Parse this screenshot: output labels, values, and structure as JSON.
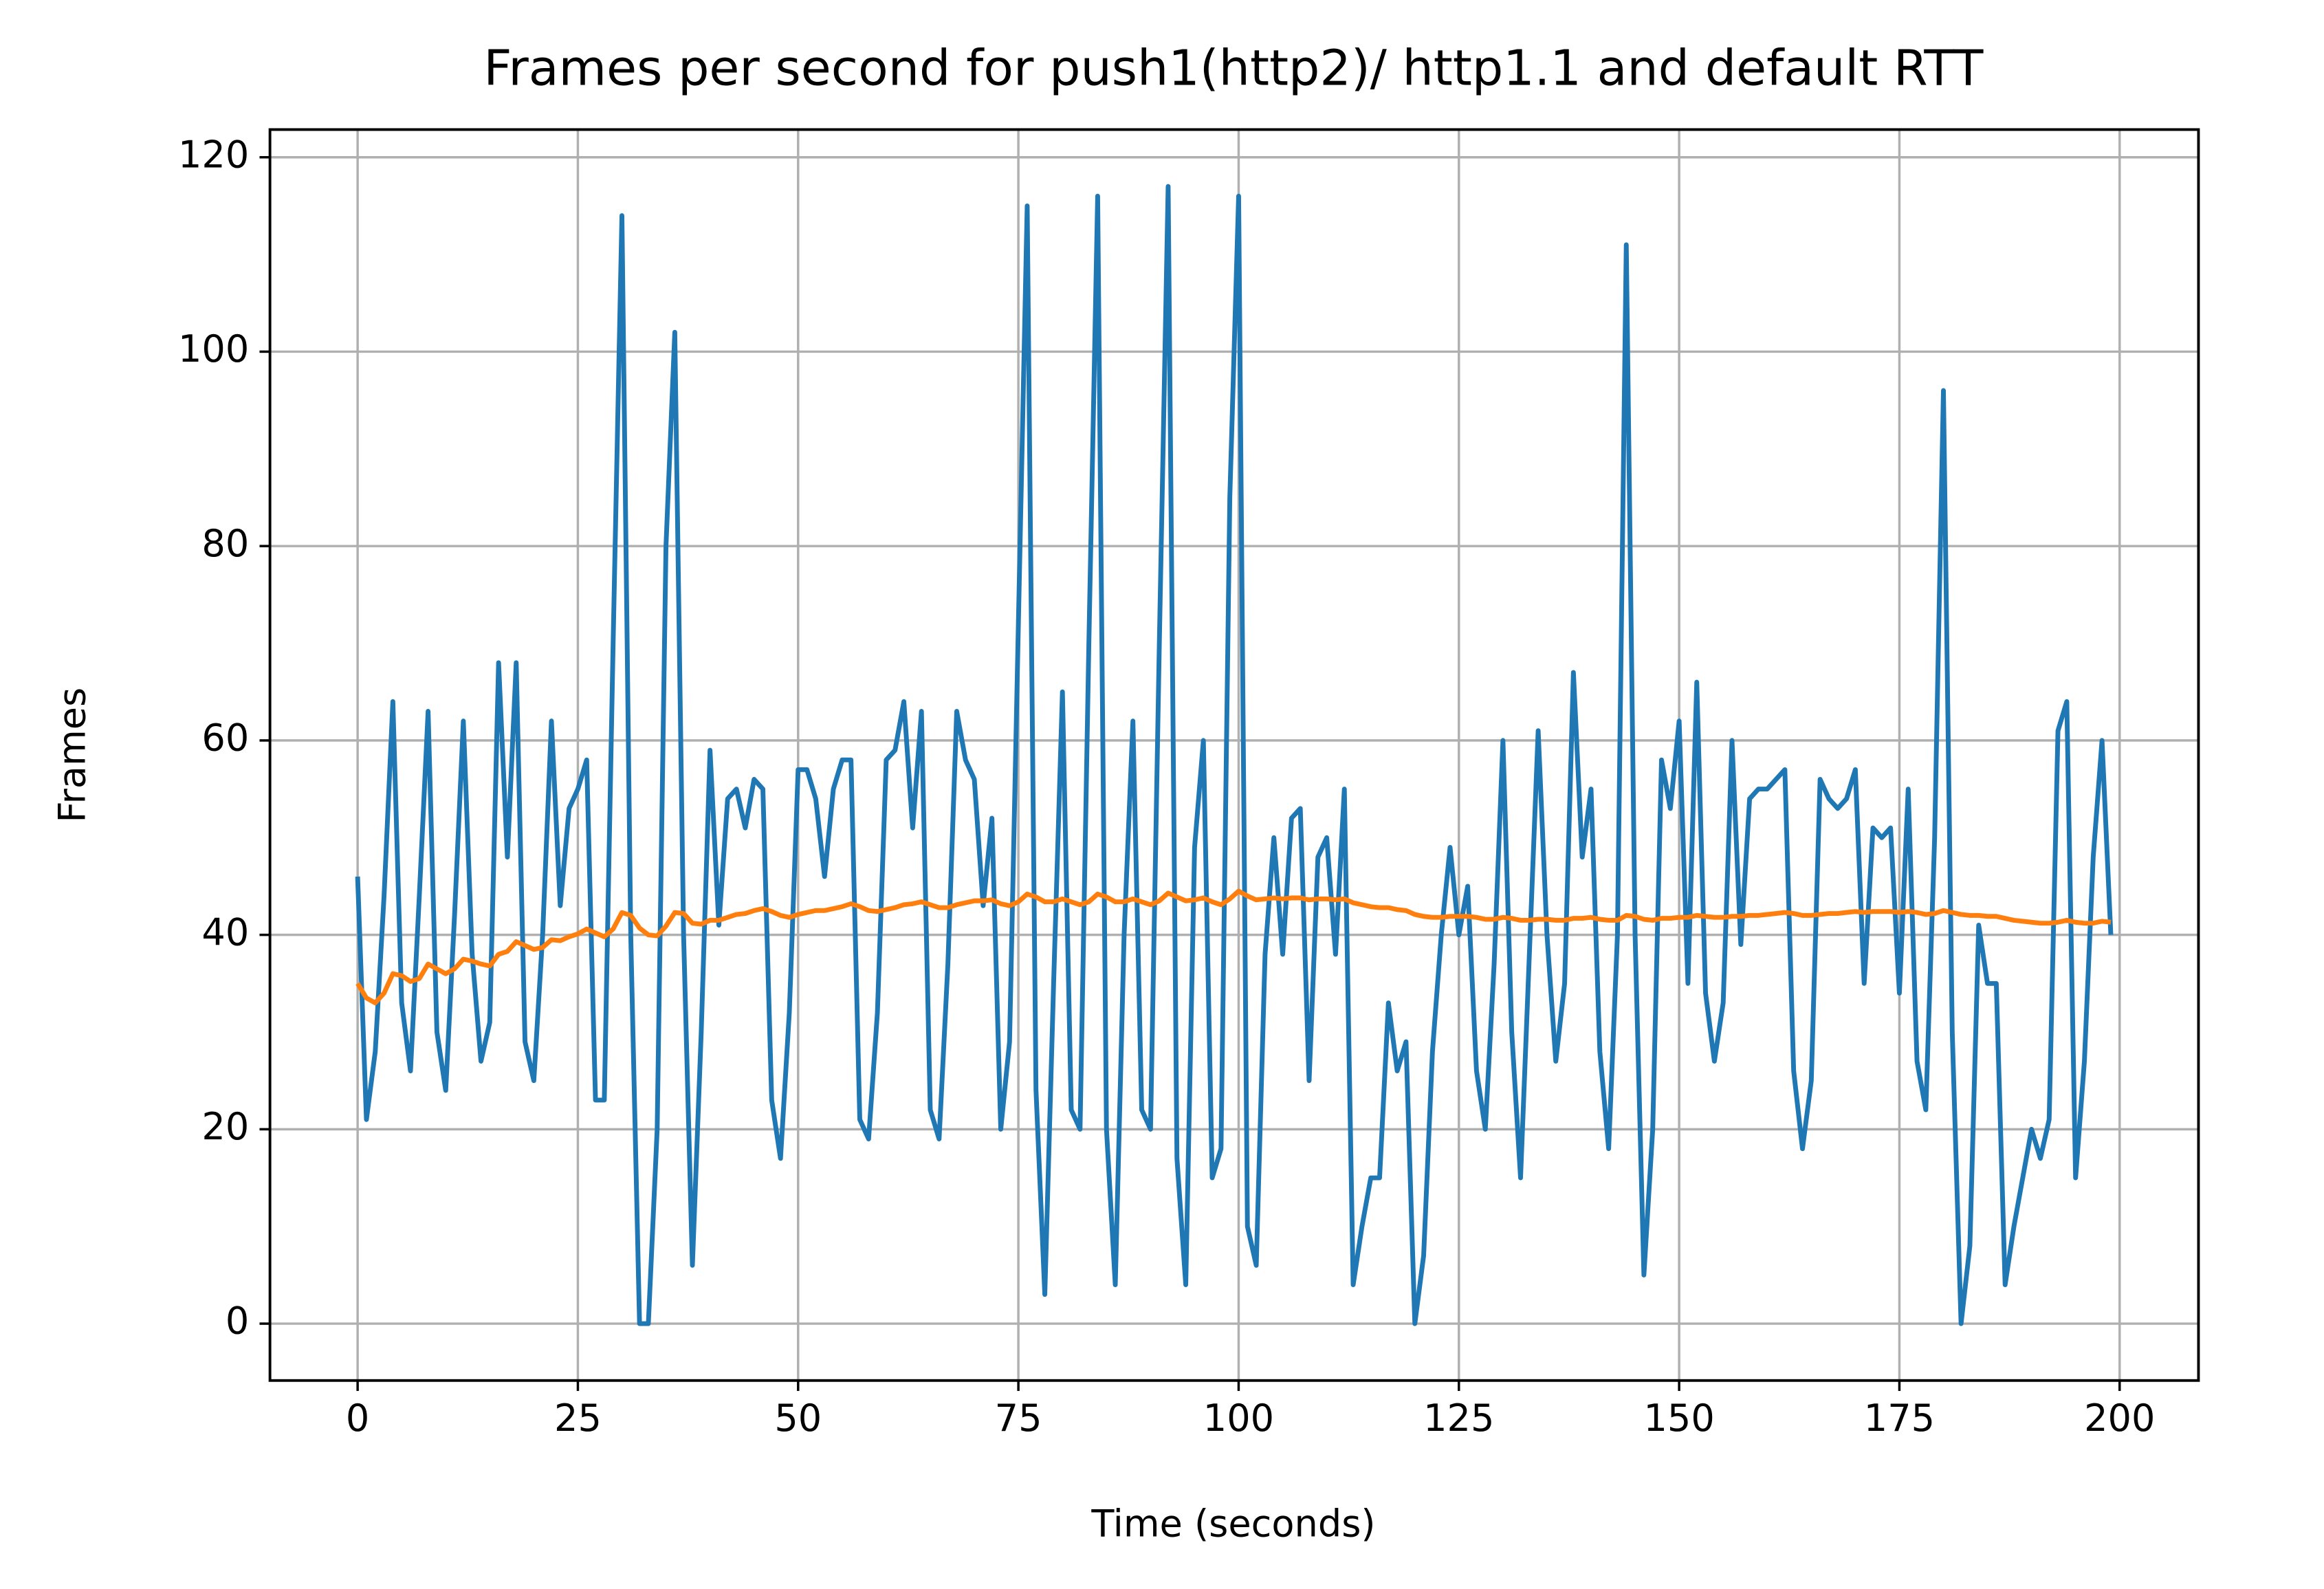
{
  "chart_data": {
    "type": "line",
    "title": "Frames per second for push1(http2)/ http1.1 and default RTT",
    "x_label": "Time (seconds)",
    "y_label": "Frames",
    "x": [
      0,
      1,
      2,
      3,
      4,
      5,
      6,
      7,
      8,
      9,
      10,
      11,
      12,
      13,
      14,
      15,
      16,
      17,
      18,
      19,
      20,
      21,
      22,
      23,
      24,
      25,
      26,
      27,
      28,
      29,
      30,
      31,
      32,
      33,
      34,
      35,
      36,
      37,
      38,
      39,
      40,
      41,
      42,
      43,
      44,
      45,
      46,
      47,
      48,
      49,
      50,
      51,
      52,
      53,
      54,
      55,
      56,
      57,
      58,
      59,
      60,
      61,
      62,
      63,
      64,
      65,
      66,
      67,
      68,
      69,
      70,
      71,
      72,
      73,
      74,
      75,
      76,
      77,
      78,
      79,
      80,
      81,
      82,
      83,
      84,
      85,
      86,
      87,
      88,
      89,
      90,
      91,
      92,
      93,
      94,
      95,
      96,
      97,
      98,
      99,
      100,
      101,
      102,
      103,
      104,
      105,
      106,
      107,
      108,
      109,
      110,
      111,
      112,
      113,
      114,
      115,
      116,
      117,
      118,
      119,
      120,
      121,
      122,
      123,
      124,
      125,
      126,
      127,
      128,
      129,
      130,
      131,
      132,
      133,
      134,
      135,
      136,
      137,
      138,
      139,
      140,
      141,
      142,
      143,
      144,
      145,
      146,
      147,
      148,
      149,
      150,
      151,
      152,
      153,
      154,
      155,
      156,
      157,
      158,
      159,
      160,
      161,
      162,
      163,
      164,
      165,
      166,
      167,
      168,
      169,
      170,
      171,
      172,
      173,
      174,
      175,
      176,
      177,
      178,
      179,
      180,
      181,
      182,
      183,
      184,
      185,
      186,
      187,
      188,
      189,
      190,
      191,
      192,
      193,
      194,
      195,
      196,
      197,
      198,
      199
    ],
    "series": [
      {
        "color": "#1f77b4",
        "values": [
          46,
          21,
          28,
          44,
          64,
          33,
          26,
          44,
          63,
          30,
          24,
          42,
          62,
          38,
          27,
          31,
          68,
          48,
          68,
          29,
          25,
          40,
          62,
          43,
          53,
          55,
          58,
          23,
          23,
          70,
          114,
          40,
          0,
          0,
          20,
          80,
          102,
          40,
          6,
          30,
          59,
          41,
          54,
          55,
          51,
          56,
          55,
          23,
          17,
          32,
          57,
          57,
          54,
          46,
          55,
          58,
          58,
          21,
          19,
          32,
          58,
          59,
          64,
          51,
          63,
          22,
          19,
          37,
          63,
          58,
          56,
          43,
          52,
          20,
          29,
          72,
          115,
          24,
          3,
          35,
          65,
          22,
          20,
          70,
          116,
          20,
          4,
          40,
          62,
          22,
          20,
          70,
          117,
          17,
          4,
          49,
          60,
          15,
          18,
          85,
          116,
          10,
          6,
          38,
          50,
          38,
          52,
          53,
          25,
          48,
          50,
          38,
          55,
          4,
          10,
          15,
          15,
          33,
          26,
          29,
          0,
          7,
          28,
          40,
          49,
          40,
          45,
          26,
          20,
          37,
          60,
          30,
          15,
          38,
          61,
          40,
          27,
          35,
          67,
          48,
          55,
          28,
          18,
          40,
          111,
          40,
          5,
          20,
          58,
          53,
          62,
          35,
          66,
          34,
          27,
          33,
          60,
          39,
          54,
          55,
          55,
          56,
          57,
          26,
          18,
          25,
          56,
          54,
          53,
          54,
          57,
          35,
          51,
          50,
          51,
          34,
          55,
          27,
          22,
          50,
          96,
          30,
          0,
          8,
          41,
          35,
          35,
          4,
          10,
          15,
          20,
          17,
          21,
          61,
          64,
          15,
          27,
          48,
          60,
          40
        ]
      },
      {
        "color": "#ff7f0e",
        "values": [
          35,
          33.5,
          33,
          34,
          36,
          35.8,
          35.2,
          35.5,
          37,
          36.5,
          36,
          36.5,
          37.5,
          37.3,
          37,
          36.8,
          38,
          38.3,
          39.3,
          38.9,
          38.5,
          38.7,
          39.5,
          39.4,
          39.8,
          40.1,
          40.6,
          40.2,
          39.8,
          40.6,
          42.3,
          42,
          40.7,
          40,
          39.9,
          40.9,
          42.3,
          42.2,
          41.2,
          41.1,
          41.5,
          41.5,
          41.8,
          42.1,
          42.2,
          42.5,
          42.7,
          42.4,
          42,
          41.8,
          42.1,
          42.3,
          42.5,
          42.5,
          42.7,
          42.9,
          43.2,
          42.9,
          42.5,
          42.4,
          42.6,
          42.8,
          43.1,
          43.2,
          43.4,
          43.1,
          42.8,
          42.8,
          43.1,
          43.3,
          43.5,
          43.5,
          43.6,
          43.2,
          43,
          43.4,
          44.2,
          43.9,
          43.4,
          43.4,
          43.7,
          43.4,
          43.1,
          43.4,
          44.2,
          43.9,
          43.4,
          43.4,
          43.7,
          43.4,
          43.1,
          43.5,
          44.3,
          43.9,
          43.5,
          43.6,
          43.8,
          43.4,
          43.1,
          43.7,
          44.5,
          44,
          43.6,
          43.7,
          43.8,
          43.7,
          43.8,
          43.8,
          43.6,
          43.7,
          43.7,
          43.6,
          43.7,
          43.3,
          43.1,
          42.9,
          42.8,
          42.8,
          42.6,
          42.5,
          42.1,
          41.9,
          41.8,
          41.8,
          41.9,
          41.9,
          41.9,
          41.8,
          41.6,
          41.6,
          41.8,
          41.7,
          41.5,
          41.5,
          41.6,
          41.6,
          41.5,
          41.5,
          41.7,
          41.7,
          41.8,
          41.6,
          41.5,
          41.5,
          42,
          41.9,
          41.6,
          41.5,
          41.7,
          41.7,
          41.8,
          41.8,
          42,
          41.9,
          41.8,
          41.8,
          41.9,
          41.9,
          42,
          42,
          42.1,
          42.2,
          42.3,
          42.2,
          42,
          42,
          42.1,
          42.2,
          42.2,
          42.3,
          42.4,
          42.3,
          42.4,
          42.4,
          42.4,
          42.3,
          42.4,
          42.3,
          42.1,
          42.2,
          42.5,
          42.3,
          42.1,
          42,
          42,
          41.9,
          41.9,
          41.7,
          41.5,
          41.4,
          41.3,
          41.2,
          41.2,
          41.3,
          41.5,
          41.3,
          41.2,
          41.2,
          41.4,
          41.3
        ]
      }
    ],
    "xlim": [
      -9.95,
      208.95
    ],
    "ylim": [
      -5.85,
      122.85
    ],
    "xticks": [
      0,
      25,
      50,
      75,
      100,
      125,
      150,
      175,
      200
    ],
    "yticks": [
      0,
      20,
      40,
      60,
      80,
      100,
      120
    ],
    "grid": true
  }
}
